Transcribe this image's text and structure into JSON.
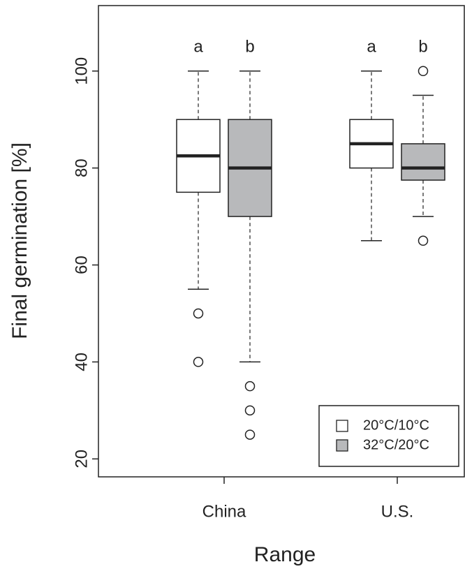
{
  "chart_data": {
    "type": "box",
    "y_label": "Final germination [%]",
    "x_label": "Range",
    "categories": [
      "China",
      "U.S."
    ],
    "series": [
      {
        "name": "20°C/10°C",
        "color": "#ffffff",
        "whisker_low": [
          55,
          65
        ],
        "q1": [
          75,
          80
        ],
        "median": [
          82.5,
          85
        ],
        "q3": [
          90,
          90
        ],
        "whisker_high": [
          100,
          100
        ],
        "outliers": [
          [
            50,
            40
          ],
          []
        ],
        "letters": [
          "a",
          "a"
        ]
      },
      {
        "name": "32°C/20°C",
        "color": "#b8b9bb",
        "whisker_low": [
          40,
          70
        ],
        "q1": [
          70,
          77.5
        ],
        "median": [
          80,
          80
        ],
        "q3": [
          90,
          85
        ],
        "whisker_high": [
          100,
          95
        ],
        "outliers": [
          [
            35,
            30,
            25
          ],
          [
            100,
            65
          ]
        ],
        "letters": [
          "b",
          "b"
        ]
      }
    ],
    "ylim": [
      16.3,
      113.5
    ],
    "yticks": [
      20,
      40,
      60,
      80,
      100
    ],
    "legend": "bottom-right"
  }
}
